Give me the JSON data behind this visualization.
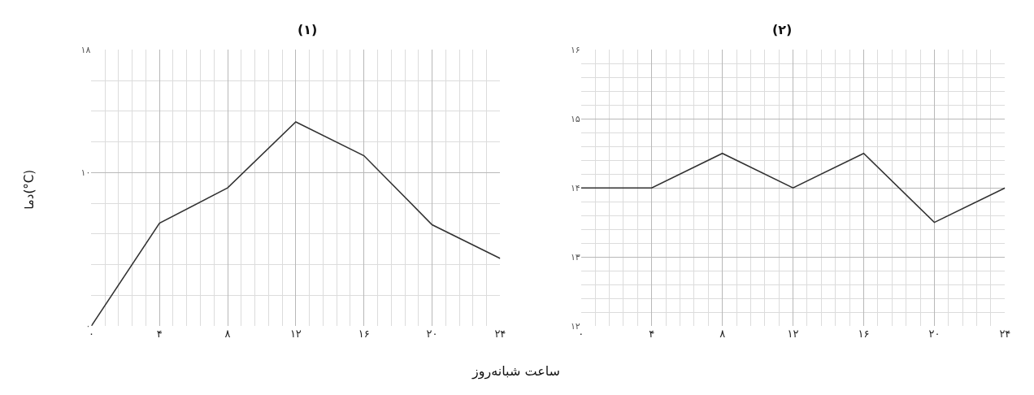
{
  "chart_data": [
    {
      "type": "line",
      "title": "(۱)",
      "ylabel": "دما(°C)",
      "xlabel": "ساعت شبانه‌روز",
      "x": [
        0,
        4,
        8,
        12,
        16,
        20,
        24
      ],
      "series": [
        {
          "color": "#333333",
          "values": [
            0,
            6.7,
            9.0,
            13.3,
            11.1,
            6.6,
            4.4
          ]
        }
      ],
      "xlim": [
        0,
        24
      ],
      "ylim": [
        0,
        18
      ],
      "xticks": [
        {
          "value": 0,
          "label": "۰"
        },
        {
          "value": 4,
          "label": "۴"
        },
        {
          "value": 8,
          "label": "۸"
        },
        {
          "value": 12,
          "label": "۱۲"
        },
        {
          "value": 16,
          "label": "۱۶"
        },
        {
          "value": 20,
          "label": "۲۰"
        },
        {
          "value": 24,
          "label": "۲۴"
        }
      ],
      "yticks": [
        {
          "value": 0,
          "label": "۰"
        },
        {
          "value": 10,
          "label": "۱۰"
        },
        {
          "value": 18,
          "label": "۱۸"
        }
      ],
      "grid": true
    },
    {
      "type": "line",
      "title": "(۲)",
      "x": [
        0,
        4,
        8,
        12,
        16,
        20,
        24
      ],
      "series": [
        {
          "color": "#333333",
          "values": [
            14,
            14,
            14.5,
            14,
            14.5,
            13.5,
            14
          ]
        }
      ],
      "xlim": [
        0,
        24
      ],
      "ylim": [
        12,
        16
      ],
      "xticks": [
        {
          "value": 0,
          "label": "۰"
        },
        {
          "value": 4,
          "label": "۴"
        },
        {
          "value": 8,
          "label": "۸"
        },
        {
          "value": 12,
          "label": "۱۲"
        },
        {
          "value": 16,
          "label": "۱۶"
        },
        {
          "value": 20,
          "label": "۲۰"
        },
        {
          "value": 24,
          "label": "۲۴"
        }
      ],
      "yticks": [
        {
          "value": 12,
          "label": "۱۲"
        },
        {
          "value": 13,
          "label": "۱۳"
        },
        {
          "value": 14,
          "label": "۱۴"
        },
        {
          "value": 15,
          "label": "۱۵"
        },
        {
          "value": 16,
          "label": "۱۶"
        }
      ],
      "grid": true
    }
  ]
}
